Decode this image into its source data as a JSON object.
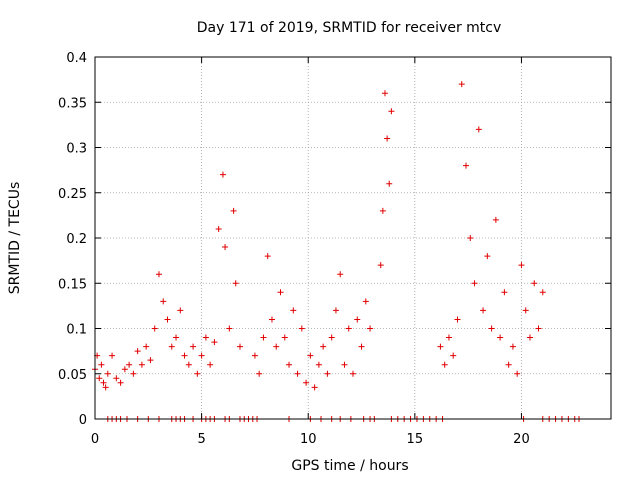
{
  "chart_data": {
    "type": "scatter",
    "title": "Day 171 of 2019, SRMTID for receiver mtcv",
    "xlabel": "GPS time / hours",
    "ylabel": "SRMTID / TECUs",
    "xlim": [
      0,
      24.2
    ],
    "ylim": [
      0,
      0.4
    ],
    "xticks": [
      0,
      5,
      10,
      15,
      20
    ],
    "xtick_labels": [
      "0",
      "5",
      "10",
      "15",
      "20"
    ],
    "yticks": [
      0,
      0.05,
      0.1,
      0.15,
      0.2,
      0.25,
      0.3,
      0.35,
      0.4
    ],
    "ytick_labels": [
      "0",
      "0.05",
      "0.1",
      "0.15",
      "0.2",
      "0.25",
      "0.3",
      "0.35",
      "0.4"
    ],
    "grid": true,
    "legend": "none",
    "marker": "+",
    "color": "#e00000",
    "series": [
      {
        "name": "SRMTID",
        "x": [
          0.0,
          0.1,
          0.2,
          0.3,
          0.4,
          0.5,
          0.6,
          0.8,
          1.0,
          1.2,
          1.4,
          1.6,
          1.8,
          2.0,
          2.2,
          2.4,
          2.6,
          2.8,
          3.0,
          3.2,
          3.4,
          3.6,
          3.8,
          4.0,
          4.2,
          4.4,
          4.6,
          4.8,
          5.0,
          5.2,
          5.4,
          5.6,
          5.8,
          6.0,
          6.1,
          6.3,
          6.5,
          6.6,
          6.8,
          7.5,
          7.7,
          7.9,
          8.1,
          8.3,
          8.5,
          8.7,
          8.9,
          9.1,
          9.3,
          9.5,
          9.7,
          9.9,
          10.1,
          10.3,
          10.5,
          10.7,
          10.9,
          11.1,
          11.3,
          11.5,
          11.7,
          11.9,
          12.1,
          12.3,
          12.5,
          12.7,
          12.9,
          13.4,
          13.5,
          13.6,
          13.7,
          13.8,
          13.9,
          16.2,
          16.4,
          16.6,
          16.8,
          17.0,
          17.2,
          17.4,
          17.6,
          17.8,
          18.0,
          18.2,
          18.4,
          18.6,
          18.8,
          19.0,
          19.2,
          19.4,
          19.6,
          19.8,
          20.0,
          20.2,
          20.4,
          20.6,
          20.8,
          21.0
        ],
        "y": [
          0.055,
          0.07,
          0.045,
          0.06,
          0.04,
          0.035,
          0.05,
          0.07,
          0.045,
          0.04,
          0.055,
          0.06,
          0.05,
          0.075,
          0.06,
          0.08,
          0.065,
          0.1,
          0.16,
          0.13,
          0.11,
          0.08,
          0.09,
          0.12,
          0.07,
          0.06,
          0.08,
          0.05,
          0.07,
          0.09,
          0.06,
          0.085,
          0.21,
          0.27,
          0.19,
          0.1,
          0.23,
          0.15,
          0.08,
          0.07,
          0.05,
          0.09,
          0.18,
          0.11,
          0.08,
          0.14,
          0.09,
          0.06,
          0.12,
          0.05,
          0.1,
          0.04,
          0.07,
          0.035,
          0.06,
          0.08,
          0.05,
          0.09,
          0.12,
          0.16,
          0.06,
          0.1,
          0.05,
          0.11,
          0.08,
          0.13,
          0.1,
          0.17,
          0.23,
          0.36,
          0.31,
          0.26,
          0.34,
          0.08,
          0.06,
          0.09,
          0.07,
          0.11,
          0.37,
          0.28,
          0.2,
          0.15,
          0.32,
          0.12,
          0.18,
          0.1,
          0.22,
          0.09,
          0.14,
          0.06,
          0.08,
          0.05,
          0.17,
          0.12,
          0.09,
          0.15,
          0.1,
          0.14
        ],
        "zero_x": [
          0.6,
          0.8,
          1.0,
          1.2,
          1.5,
          2.0,
          2.5,
          3.0,
          3.6,
          3.8,
          4.0,
          4.2,
          4.6,
          5.0,
          5.2,
          5.4,
          5.6,
          6.1,
          6.3,
          6.8,
          7.0,
          7.2,
          7.4,
          7.6,
          9.1,
          10.1,
          10.6,
          11.1,
          11.5,
          12.0,
          12.6,
          12.9,
          13.1,
          13.9,
          14.2,
          14.5,
          14.8,
          15.1,
          15.4,
          15.7,
          16.0,
          16.3,
          20.1,
          21.0,
          21.3,
          21.6,
          21.9,
          22.2,
          22.5,
          22.7
        ]
      }
    ]
  }
}
